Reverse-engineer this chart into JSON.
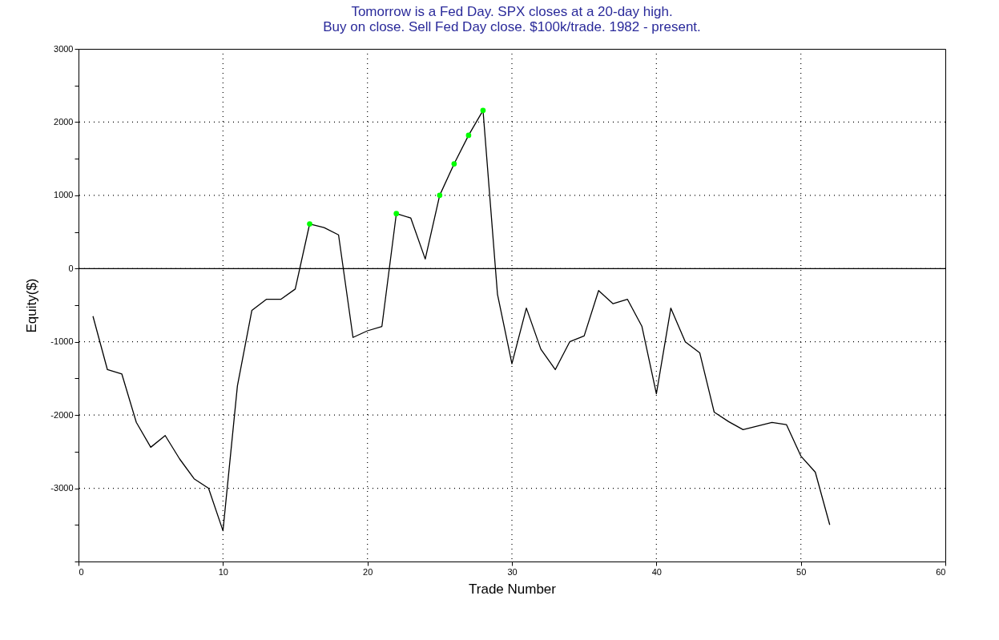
{
  "chart_data": {
    "type": "line",
    "title": [
      "Tomorrow is a Fed Day. SPX closes at a 20-day high.",
      "Buy on close. Sell Fed Day close. $100k/trade. 1982 - present."
    ],
    "xlabel": "Trade Number",
    "ylabel": "Equity($)",
    "x": [
      1,
      2,
      3,
      4,
      5,
      6,
      7,
      8,
      9,
      10,
      11,
      12,
      13,
      14,
      15,
      16,
      17,
      18,
      19,
      20,
      21,
      22,
      23,
      24,
      25,
      26,
      27,
      28,
      29,
      30,
      31,
      32,
      33,
      34,
      35,
      36,
      37,
      38,
      39,
      40,
      41,
      42,
      43,
      44,
      45,
      46,
      47,
      48,
      49,
      50,
      51,
      52
    ],
    "series": [
      {
        "color": "#000000",
        "values": [
          -650,
          -1380,
          -1440,
          -2100,
          -2440,
          -2280,
          -2600,
          -2870,
          -3000,
          -3580,
          -1600,
          -570,
          -420,
          -420,
          -280,
          610,
          560,
          460,
          -940,
          -850,
          -790,
          750,
          690,
          130,
          1000,
          1430,
          1820,
          2160,
          -350,
          -1300,
          -540,
          -1100,
          -1380,
          -1000,
          -920,
          -300,
          -480,
          -420,
          -790,
          -1710,
          -540,
          -1000,
          -1150,
          -1960,
          -2090,
          -2200,
          -2150,
          -2100,
          -2130,
          -2560,
          -2780,
          -3500
        ]
      },
      {
        "type": "scatter",
        "color": "#00ff00",
        "x": [
          16,
          22,
          25,
          26,
          27,
          28
        ],
        "values": [
          610,
          750,
          1000,
          1430,
          1820,
          2160
        ]
      }
    ],
    "xlim": [
      0,
      60
    ],
    "xticks": [
      0,
      10,
      20,
      30,
      40,
      50,
      60
    ],
    "ylim": [
      -4000,
      3000
    ],
    "yticks": [
      {
        "value": -4000,
        "label": null
      },
      {
        "value": -3500,
        "label": null
      },
      -3000,
      {
        "value": -2500,
        "label": null
      },
      -2000,
      {
        "value": -1500,
        "label": null
      },
      -1000,
      {
        "value": -500,
        "label": null
      },
      0,
      {
        "value": 500,
        "label": null
      },
      1000,
      {
        "value": 1500,
        "label": null
      },
      2000,
      {
        "value": 2500,
        "label": null
      },
      3000
    ],
    "ref_lines": [
      {
        "axis": "y",
        "value": 0,
        "color": "#000000"
      }
    ],
    "grid": true,
    "line_style": "solid"
  }
}
